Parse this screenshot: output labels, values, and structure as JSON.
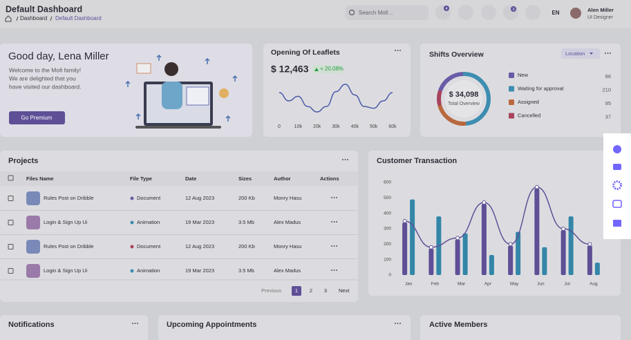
{
  "header": {
    "title": "Default Dashboard",
    "breadcrumb": [
      "Dashboard",
      "Default Dashboard"
    ],
    "search": "Search Mofi ..",
    "badges": [
      "4",
      "3"
    ],
    "language": "EN",
    "user_name": "Alen Miller",
    "user_role": "UI Designer"
  },
  "welcome": {
    "greeting": "Good day, Lena Miller",
    "lines": [
      "Welcome to the Mofi family!",
      "We are delighted that you",
      "have visited our dashboard."
    ],
    "button": "Go Premium"
  },
  "leaflets": {
    "title": "Opening Of Leaflets",
    "amount": "$ 12,463",
    "change": "+ 20.08%",
    "chart": {
      "type": "line",
      "color": "#4a5aa8",
      "x": [
        0,
        5000,
        10000,
        15000,
        20000,
        25000,
        30000,
        35000,
        40000,
        45000,
        50000,
        55000,
        60000
      ],
      "values": [
        60,
        42,
        52,
        30,
        18,
        30,
        62,
        78,
        55,
        30,
        26,
        42,
        60
      ],
      "xlim": [
        0,
        60000
      ],
      "xticks": [
        0,
        {
          "value": 10000,
          "label": "10k"
        },
        {
          "value": 20000,
          "label": "20k"
        },
        {
          "value": 30000,
          "label": "30k"
        },
        {
          "value": 40000,
          "label": "40k"
        },
        {
          "value": 50000,
          "label": "50k"
        },
        {
          "value": 60000,
          "label": "60k"
        }
      ]
    }
  },
  "shifts": {
    "title": "Shifts Overview",
    "dropdown": "Location",
    "total": "$ 34,098",
    "total_label": "Total Overview",
    "chart": {
      "type": "pie",
      "categories": [
        "New",
        "Waiting for approval",
        "Assigned",
        "Cancelled"
      ],
      "values": [
        86,
        210,
        95,
        37
      ],
      "colors": [
        "#6a5ba6",
        "#3d8db0",
        "#b9683e",
        "#a8435d"
      ]
    }
  },
  "projects": {
    "title": "Projects",
    "columns": [
      "Files Name",
      "File Type",
      "Date",
      "Sizes",
      "Author",
      "Actions"
    ],
    "rows": [
      [
        "Rules Post on Dribble",
        "Document",
        "12 Aug 2023",
        "200 Kb",
        "Monry Hasu"
      ],
      [
        "Login & Sign Up Ui",
        "Animation",
        "19 Mar 2023",
        "3.5 Mb",
        "Alex Madus"
      ],
      [
        "Rules Post on Dribble",
        "Document",
        "12 Aug 2023",
        "200 Kb",
        "Monry Hasu"
      ],
      [
        "Login & Sign Up Ui",
        "Animation",
        "19 Mar 2023",
        "3.5 Mb",
        "Alex Madus"
      ]
    ],
    "type_colors": [
      "#6a5ba6",
      "#3d8db0",
      "#a8435d",
      "#3d8db0"
    ],
    "pager": {
      "previous": "Previous",
      "pages": [
        "1",
        "2",
        "3"
      ],
      "next": "Next"
    }
  },
  "transaction": {
    "title": "Customer Transaction",
    "chart": {
      "type": "bar",
      "categories": [
        "Jan",
        "Feb",
        "Mar",
        "Apr",
        "May",
        "Jun",
        "Jul",
        "Aug"
      ],
      "series": [
        {
          "type": "bar",
          "color": "#5e4f96",
          "values": [
            340,
            170,
            230,
            460,
            190,
            560,
            290,
            190
          ]
        },
        {
          "type": "bar",
          "color": "#3486a8",
          "values": [
            490,
            380,
            270,
            130,
            280,
            180,
            380,
            80
          ]
        },
        {
          "type": "line",
          "color": "#5e4f96",
          "values": [
            350,
            180,
            240,
            470,
            200,
            570,
            300,
            200
          ]
        }
      ],
      "ylim": [
        0,
        600
      ],
      "yticks": [
        0,
        100,
        200,
        300,
        400,
        500,
        600
      ]
    }
  },
  "bottom": {
    "notifications": "Notifications",
    "appointments": "Upcoming Appointments",
    "members": "Active Members"
  }
}
